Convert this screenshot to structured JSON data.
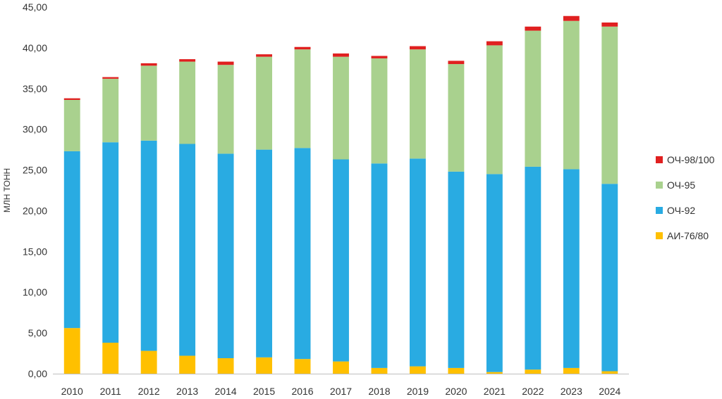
{
  "chart_data": {
    "type": "bar",
    "stacked": true,
    "ylabel": "МЛН ТОНН",
    "xlabel": "",
    "ylim": [
      0,
      45
    ],
    "yticks": [
      "0,00",
      "5,00",
      "10,00",
      "15,00",
      "20,00",
      "25,00",
      "30,00",
      "35,00",
      "40,00",
      "45,00"
    ],
    "ytick_values": [
      0,
      5,
      10,
      15,
      20,
      25,
      30,
      35,
      40,
      45
    ],
    "grid": false,
    "legend_position": "right",
    "categories": [
      "2010",
      "2011",
      "2012",
      "2013",
      "2014",
      "2015",
      "2016",
      "2017",
      "2018",
      "2019",
      "2020",
      "2021",
      "2022",
      "2023",
      "2024"
    ],
    "series": [
      {
        "name": "АИ-76/80",
        "color": "#FFC000",
        "values": [
          5.6,
          3.8,
          2.8,
          2.2,
          1.9,
          2.0,
          1.8,
          1.5,
          0.7,
          0.9,
          0.7,
          0.2,
          0.5,
          0.7,
          0.3
        ]
      },
      {
        "name": "ОЧ-92",
        "color": "#29ABE2",
        "values": [
          21.7,
          24.6,
          25.8,
          26.0,
          25.1,
          25.5,
          25.9,
          24.8,
          25.1,
          25.5,
          24.1,
          24.3,
          24.9,
          24.4,
          23.0
        ]
      },
      {
        "name": "ОЧ-95",
        "color": "#A9D18E",
        "values": [
          6.3,
          7.8,
          9.2,
          10.1,
          10.9,
          11.4,
          12.1,
          12.6,
          12.9,
          13.4,
          13.2,
          15.8,
          16.7,
          18.2,
          19.3
        ]
      },
      {
        "name": "ОЧ-98/100",
        "color": "#E02020",
        "values": [
          0.2,
          0.2,
          0.3,
          0.3,
          0.4,
          0.3,
          0.3,
          0.4,
          0.3,
          0.4,
          0.4,
          0.5,
          0.5,
          0.6,
          0.5
        ]
      }
    ]
  }
}
